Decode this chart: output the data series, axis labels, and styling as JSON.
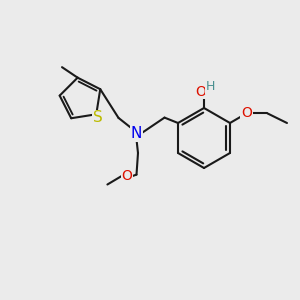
{
  "bg_color": "#ebebeb",
  "bond_color": "#1a1a1a",
  "N_color": "#0000ee",
  "O_color": "#dd1100",
  "S_color": "#bbbb00",
  "H_color": "#4a9090",
  "line_width": 1.5,
  "font_size": 9,
  "fig_w": 3.0,
  "fig_h": 3.0,
  "dpi": 100,
  "xlim": [
    0,
    10
  ],
  "ylim": [
    0,
    10
  ]
}
